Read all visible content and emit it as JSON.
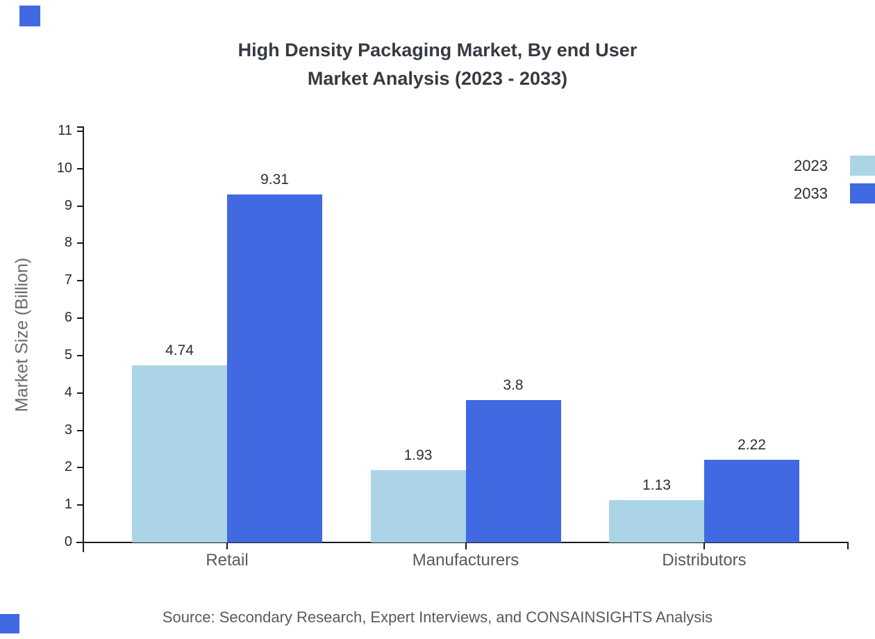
{
  "title": {
    "line1": "High Density Packaging Market, By end User",
    "line2": "Market Analysis (2023 - 2033)"
  },
  "source_note": "Source: Secondary Research, Expert Interviews, and CONSAINSIGHTS Analysis",
  "colors": {
    "series_2023": "#abd5e6",
    "series_2033": "#4169e1",
    "corner_accent": "#4169e1"
  },
  "legend": {
    "items": [
      {
        "label": "2023",
        "color": "#abd5e6"
      },
      {
        "label": "2033",
        "color": "#4169e1"
      }
    ]
  },
  "chart_data": {
    "type": "bar",
    "title": "High Density Packaging Market, By end User Market Analysis (2023 - 2033)",
    "categories": [
      "Retail",
      "Manufacturers",
      "Distributors"
    ],
    "series": [
      {
        "name": "2023",
        "color": "#abd5e6",
        "values": [
          4.74,
          1.93,
          1.13
        ]
      },
      {
        "name": "2033",
        "color": "#4169e1",
        "values": [
          9.31,
          3.8,
          2.22
        ]
      }
    ],
    "value_labels": [
      [
        "4.74",
        "1.93",
        "1.13"
      ],
      [
        "9.31",
        "3.8",
        "2.22"
      ]
    ],
    "xlabel": "",
    "ylabel": "Market Size (Billion)",
    "ylim": [
      0,
      11
    ],
    "ytick_step": 1,
    "yticks": [
      0,
      1,
      2,
      3,
      4,
      5,
      6,
      7,
      8,
      9,
      10,
      11
    ],
    "grid": false,
    "legend_position": "top-right"
  }
}
